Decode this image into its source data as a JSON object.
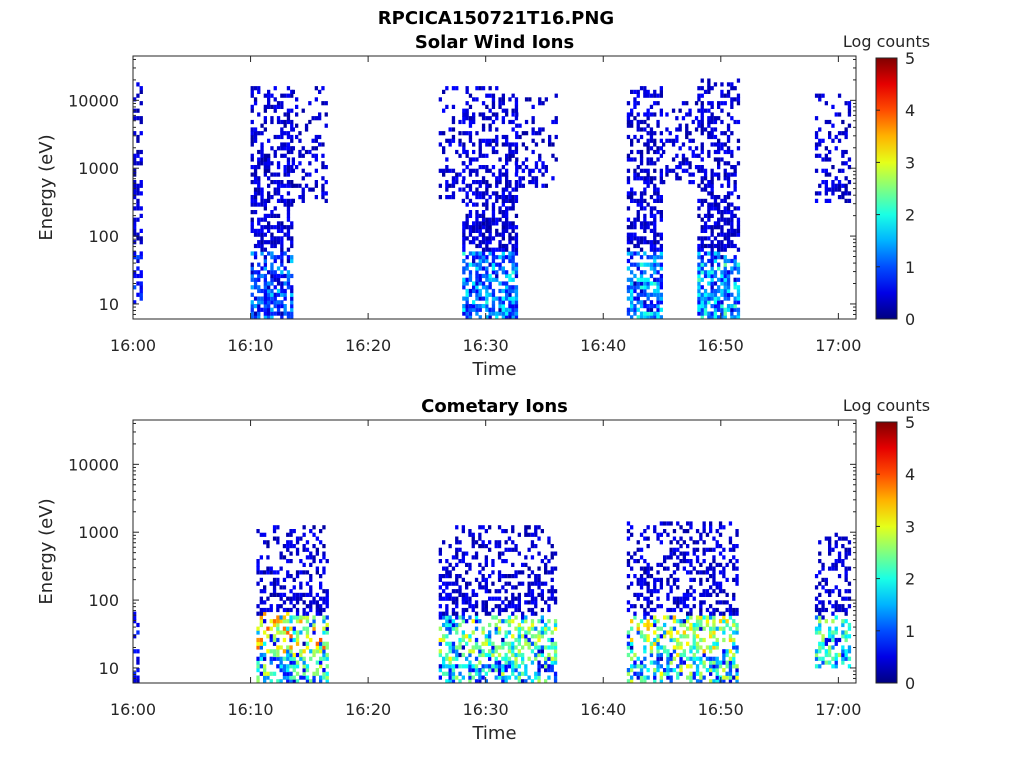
{
  "figure_title": "RPCICA150721T16.PNG",
  "colors": {
    "axis": "#262626",
    "background": "#ffffff"
  },
  "chart_data": [
    {
      "type": "heatmap",
      "title": "Solar Wind Ions",
      "xlabel": "Time",
      "ylabel": "Energy (eV)",
      "x_ticks": [
        "16:00",
        "16:10",
        "16:20",
        "16:30",
        "16:40",
        "16:50",
        "17:00"
      ],
      "x_range_minutes": [
        0,
        61.5
      ],
      "y_scale": "log",
      "y_range": [
        6,
        45000
      ],
      "y_ticks": [
        "10",
        "100",
        "1000",
        "10000"
      ],
      "y_tick_values": [
        10,
        100,
        1000,
        10000
      ],
      "colorbar": {
        "label": "Log counts",
        "range": [
          0,
          5
        ],
        "ticks": [
          "0",
          "1",
          "2",
          "3",
          "4",
          "5"
        ],
        "colormap": "jet"
      },
      "bursts": [
        {
          "start_min": 0.0,
          "end_min": 0.6,
          "e_min": 10,
          "e_max": 20000,
          "low_e_level": 0.6,
          "density": 0.55
        },
        {
          "start_min": 10.0,
          "end_min": 13.5,
          "e_min": 6,
          "e_max": 16000,
          "low_e_level": 1.1,
          "density": 0.6
        },
        {
          "start_min": 13.5,
          "end_min": 16.5,
          "e_min": 300,
          "e_max": 16000,
          "low_e_level": 0.4,
          "density": 0.3
        },
        {
          "start_min": 26.0,
          "end_min": 28.0,
          "e_min": 300,
          "e_max": 16000,
          "low_e_level": 0.3,
          "density": 0.25
        },
        {
          "start_min": 28.0,
          "end_min": 32.5,
          "e_min": 6,
          "e_max": 16000,
          "low_e_level": 1.5,
          "density": 0.6
        },
        {
          "start_min": 32.5,
          "end_min": 36.0,
          "e_min": 500,
          "e_max": 12000,
          "low_e_level": 0.3,
          "density": 0.25
        },
        {
          "start_min": 42.0,
          "end_min": 45.0,
          "e_min": 6,
          "e_max": 16000,
          "low_e_level": 1.6,
          "density": 0.6
        },
        {
          "start_min": 45.0,
          "end_min": 48.0,
          "e_min": 600,
          "e_max": 10000,
          "low_e_level": 0.3,
          "density": 0.3
        },
        {
          "start_min": 48.0,
          "end_min": 51.5,
          "e_min": 6,
          "e_max": 20000,
          "low_e_level": 1.8,
          "density": 0.6
        },
        {
          "start_min": 58.0,
          "end_min": 61.0,
          "e_min": 300,
          "e_max": 12000,
          "low_e_level": 0.4,
          "density": 0.35
        }
      ]
    },
    {
      "type": "heatmap",
      "title": "Cometary Ions",
      "xlabel": "Time",
      "ylabel": "Energy (eV)",
      "x_ticks": [
        "16:00",
        "16:10",
        "16:20",
        "16:30",
        "16:40",
        "16:50",
        "17:00"
      ],
      "x_range_minutes": [
        0,
        61.5
      ],
      "y_scale": "log",
      "y_range": [
        6,
        45000
      ],
      "y_ticks": [
        "10",
        "100",
        "1000",
        "10000"
      ],
      "y_tick_values": [
        10,
        100,
        1000,
        10000
      ],
      "colorbar": {
        "label": "Log counts",
        "range": [
          0,
          5
        ],
        "ticks": [
          "0",
          "1",
          "2",
          "3",
          "4",
          "5"
        ],
        "colormap": "jet"
      },
      "bursts": [
        {
          "start_min": 0.0,
          "end_min": 0.5,
          "e_min": 6,
          "e_max": 100,
          "low_e_level": 0.4,
          "density": 0.5
        },
        {
          "start_min": 10.5,
          "end_min": 16.5,
          "e_min": 6,
          "e_max": 1200,
          "low_e_level": 2.6,
          "density": 0.5,
          "peak_e": 35,
          "peak_level": 4.0
        },
        {
          "start_min": 26.0,
          "end_min": 36.0,
          "e_min": 6,
          "e_max": 1200,
          "low_e_level": 2.4,
          "density": 0.5,
          "peak_e": 25,
          "peak_level": 3.2
        },
        {
          "start_min": 42.0,
          "end_min": 51.5,
          "e_min": 6,
          "e_max": 1500,
          "low_e_level": 2.6,
          "density": 0.5,
          "peak_e": 30,
          "peak_level": 3.5
        },
        {
          "start_min": 58.0,
          "end_min": 61.0,
          "e_min": 10,
          "e_max": 1000,
          "low_e_level": 2.2,
          "density": 0.45,
          "peak_e": 25,
          "peak_level": 2.8
        }
      ]
    }
  ]
}
